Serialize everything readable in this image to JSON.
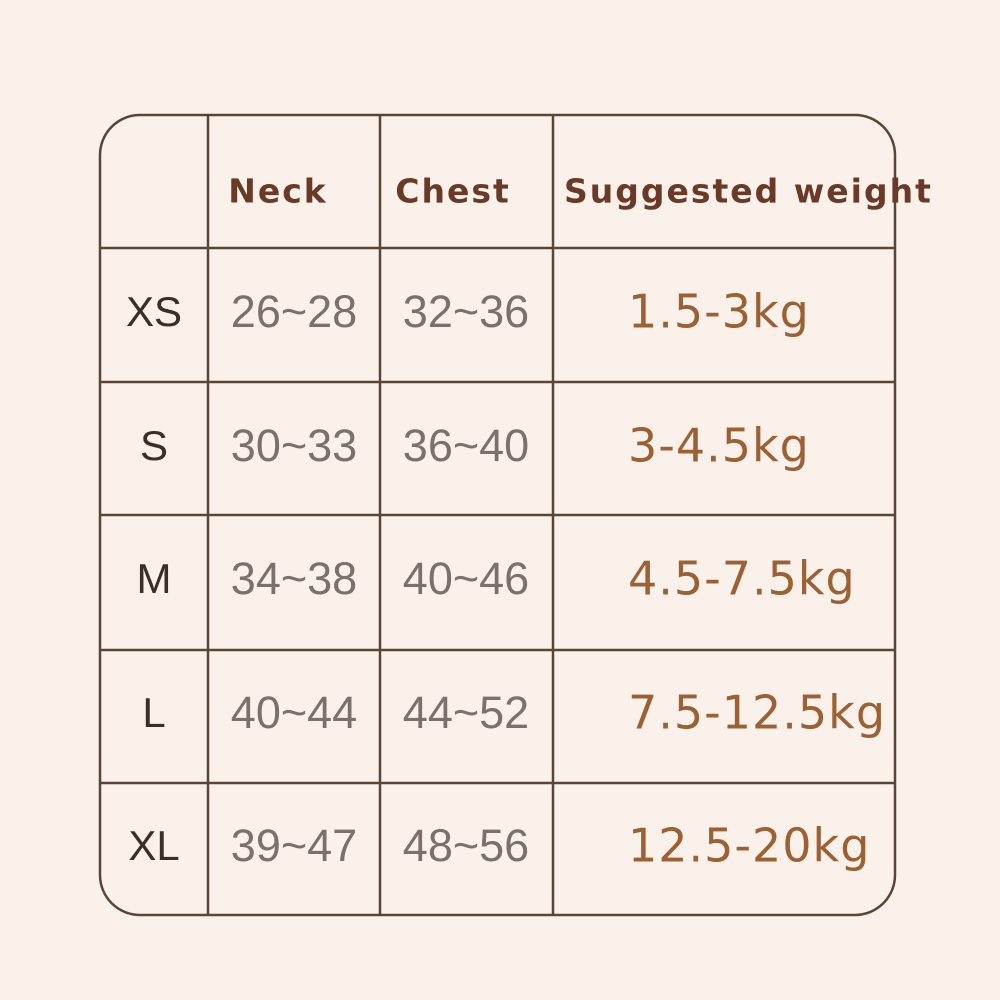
{
  "table": {
    "header": [
      "Neck",
      "Chest",
      "Suggested weight"
    ],
    "rows": [
      [
        "XS",
        "26~28",
        "32~36",
        "1.5-3kg"
      ],
      [
        "S",
        "30~33",
        "36~40",
        "3-4.5kg"
      ],
      [
        "M",
        "34~38",
        "40~46",
        "4.5-7.5kg"
      ],
      [
        "L",
        "40~44",
        "44~52",
        "7.5-12.5kg"
      ],
      [
        "XL",
        "39~47",
        "48~56",
        "12.5-20kg"
      ]
    ]
  }
}
